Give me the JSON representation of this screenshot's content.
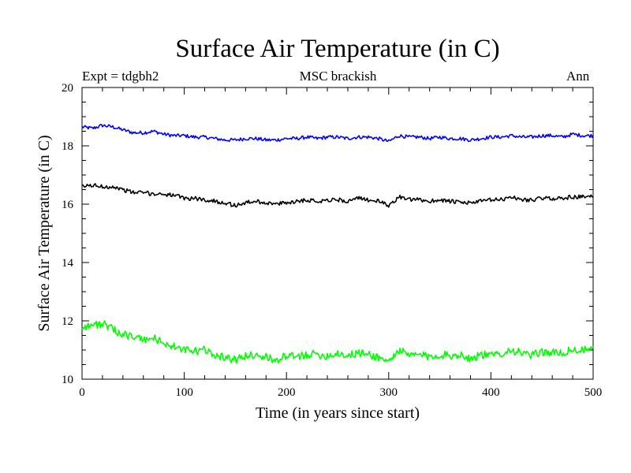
{
  "header": {
    "expt": "Expt = tdgbh2",
    "center": "MSC brackish",
    "season": "Ann"
  },
  "chart_data": {
    "type": "line",
    "title": "Surface Air Temperature (in C)",
    "xlabel": "Time (in years since start)",
    "ylabel": "Surface Air Temperature (in C)",
    "xlim": [
      0,
      500
    ],
    "ylim": [
      10,
      20
    ],
    "xticks": [
      0,
      100,
      200,
      300,
      400,
      500
    ],
    "yticks": [
      10,
      12,
      14,
      16,
      18,
      20
    ],
    "grid": false,
    "legend": "none",
    "series": [
      {
        "color": "#0000ff",
        "x": [
          0,
          10,
          20,
          30,
          40,
          50,
          60,
          70,
          80,
          90,
          100,
          110,
          120,
          130,
          140,
          150,
          160,
          170,
          180,
          190,
          200,
          210,
          220,
          230,
          240,
          250,
          260,
          270,
          280,
          290,
          300,
          310,
          320,
          330,
          340,
          350,
          360,
          370,
          380,
          390,
          400,
          410,
          420,
          430,
          440,
          450,
          460,
          470,
          480,
          490,
          500
        ],
        "values": [
          18.65,
          18.6,
          18.7,
          18.65,
          18.55,
          18.45,
          18.45,
          18.5,
          18.4,
          18.35,
          18.35,
          18.3,
          18.3,
          18.25,
          18.2,
          18.2,
          18.25,
          18.25,
          18.2,
          18.2,
          18.25,
          18.25,
          18.3,
          18.25,
          18.3,
          18.3,
          18.25,
          18.3,
          18.3,
          18.25,
          18.15,
          18.35,
          18.3,
          18.3,
          18.25,
          18.3,
          18.25,
          18.25,
          18.2,
          18.25,
          18.3,
          18.3,
          18.35,
          18.3,
          18.3,
          18.35,
          18.35,
          18.3,
          18.4,
          18.35,
          18.35
        ]
      },
      {
        "color": "#000000",
        "x": [
          0,
          10,
          20,
          30,
          40,
          50,
          60,
          70,
          80,
          90,
          100,
          110,
          120,
          130,
          140,
          150,
          160,
          170,
          180,
          190,
          200,
          210,
          220,
          230,
          240,
          250,
          260,
          270,
          280,
          290,
          300,
          310,
          320,
          330,
          340,
          350,
          360,
          370,
          380,
          390,
          400,
          410,
          420,
          430,
          440,
          450,
          460,
          470,
          480,
          490,
          500
        ],
        "values": [
          16.6,
          16.65,
          16.6,
          16.6,
          16.5,
          16.4,
          16.4,
          16.35,
          16.35,
          16.3,
          16.2,
          16.2,
          16.15,
          16.1,
          16.05,
          15.95,
          16.05,
          16.1,
          16.05,
          16.0,
          16.05,
          16.1,
          16.15,
          16.1,
          16.15,
          16.15,
          16.1,
          16.2,
          16.15,
          16.1,
          15.95,
          16.25,
          16.15,
          16.15,
          16.1,
          16.15,
          16.1,
          16.05,
          16.05,
          16.1,
          16.15,
          16.15,
          16.25,
          16.15,
          16.15,
          16.2,
          16.2,
          16.2,
          16.25,
          16.25,
          16.25
        ]
      },
      {
        "color": "#00ff00",
        "x": [
          0,
          10,
          20,
          30,
          40,
          50,
          60,
          70,
          80,
          90,
          100,
          110,
          120,
          130,
          140,
          150,
          160,
          170,
          180,
          190,
          200,
          210,
          220,
          230,
          240,
          250,
          260,
          270,
          280,
          290,
          300,
          310,
          320,
          330,
          340,
          350,
          360,
          370,
          380,
          390,
          400,
          410,
          420,
          430,
          440,
          450,
          460,
          470,
          480,
          490,
          500
        ],
        "values": [
          11.8,
          11.85,
          11.9,
          11.7,
          11.55,
          11.45,
          11.35,
          11.4,
          11.25,
          11.1,
          11.0,
          10.95,
          11.0,
          10.85,
          10.75,
          10.65,
          10.8,
          10.85,
          10.75,
          10.65,
          10.8,
          10.75,
          10.85,
          10.85,
          10.8,
          10.9,
          10.8,
          10.9,
          10.85,
          10.75,
          10.6,
          11.0,
          10.8,
          10.85,
          10.75,
          10.85,
          10.8,
          10.85,
          10.7,
          10.85,
          10.8,
          10.9,
          11.0,
          10.9,
          10.8,
          10.95,
          10.9,
          10.9,
          11.0,
          11.0,
          11.0
        ]
      }
    ]
  }
}
